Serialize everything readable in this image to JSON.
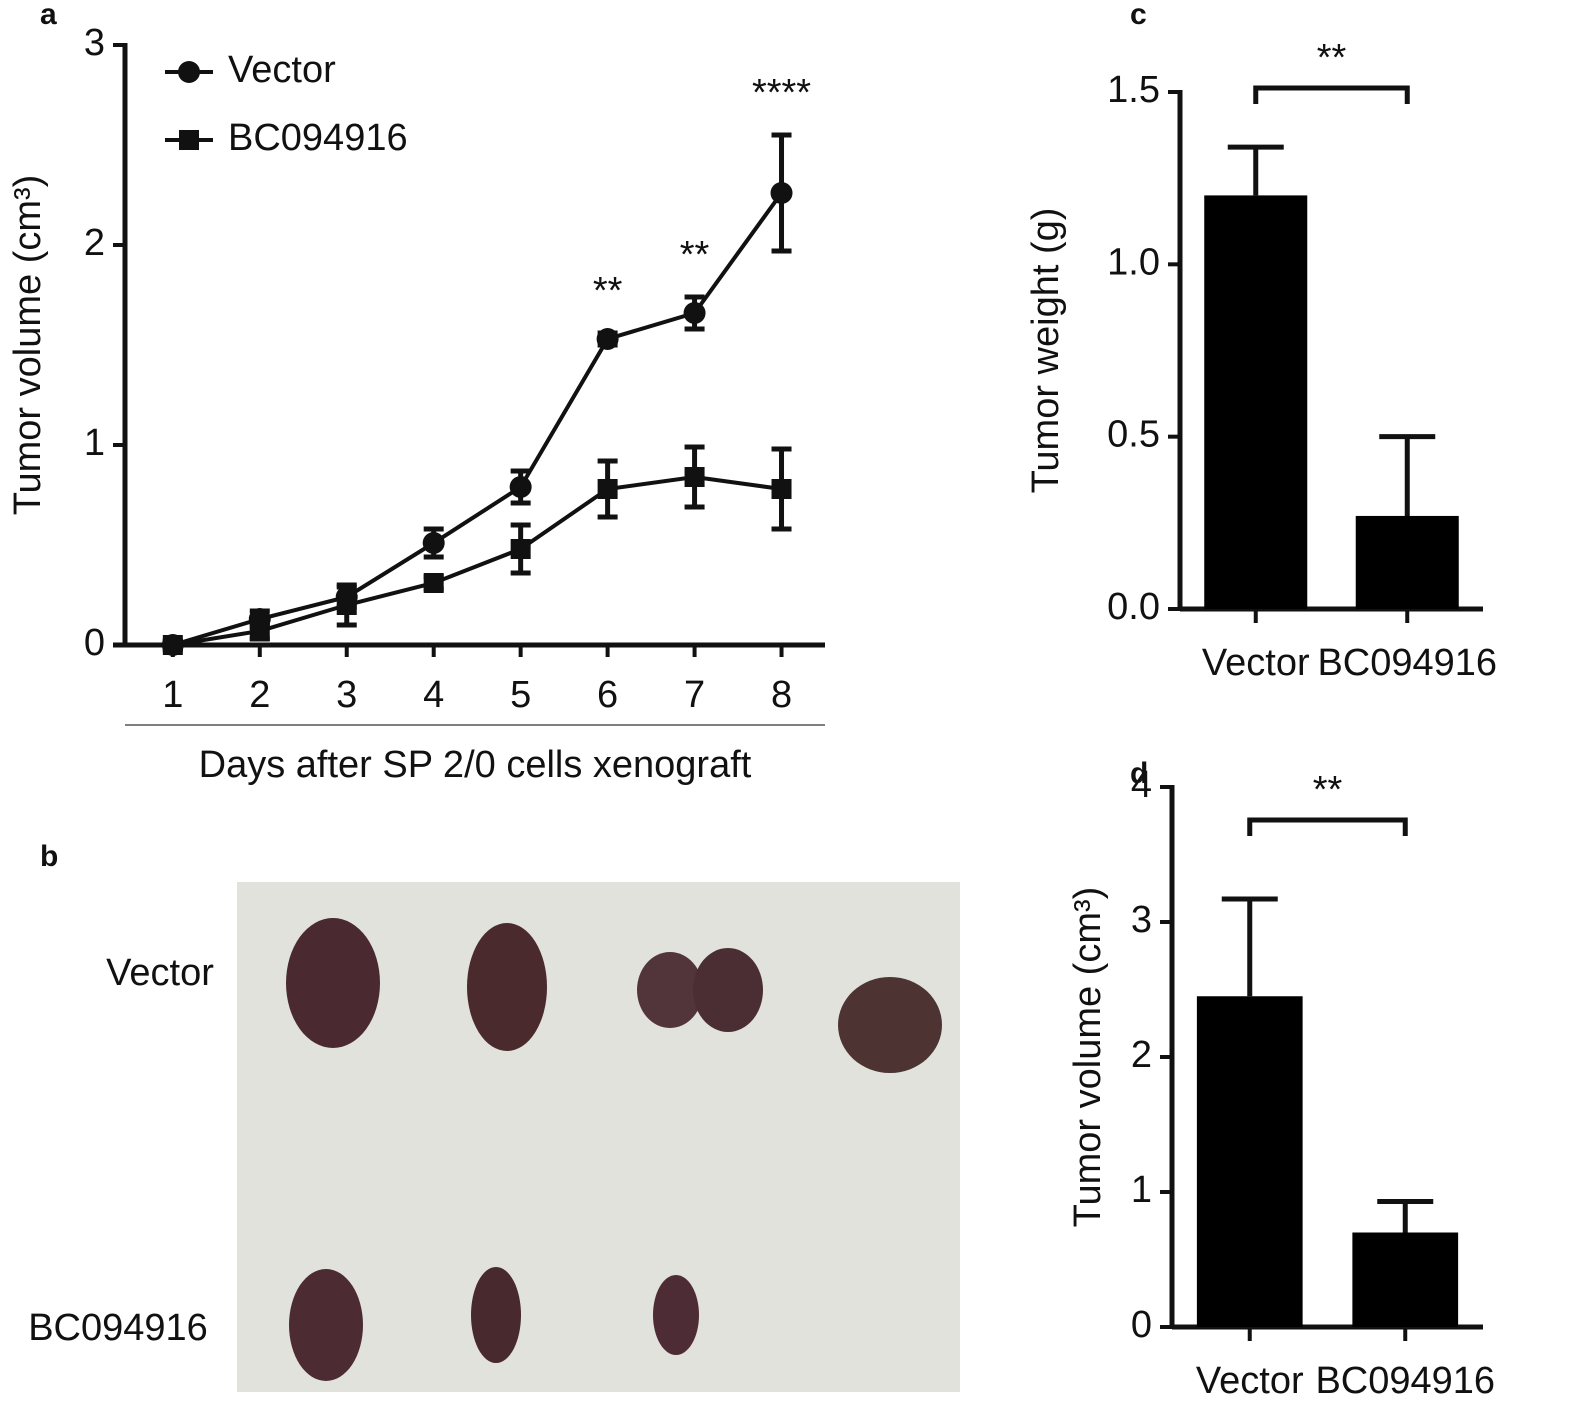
{
  "panel_labels": [
    "a",
    "b",
    "c",
    "d"
  ],
  "photo": {
    "row_labels": [
      "Vector",
      "BC094916"
    ]
  },
  "chart_data": [
    {
      "type": "line",
      "ylabel": "Tumor volume (cm³)",
      "xlabel": "Days after SP 2/0 cells xenograft",
      "x": [
        1,
        2,
        3,
        4,
        5,
        6,
        7,
        8
      ],
      "xlim": [
        0.45,
        8.5
      ],
      "xticks": [
        1,
        2,
        3,
        4,
        5,
        6,
        7,
        8
      ],
      "ylim": [
        0,
        3
      ],
      "yticks": [
        0,
        1,
        2,
        3
      ],
      "series": [
        {
          "name": "Vector",
          "color": "#111111",
          "marker": "circle",
          "values": [
            0,
            0.13,
            0.24,
            0.51,
            0.79,
            1.53,
            1.66,
            2.26
          ],
          "errors": [
            0.02,
            0.04,
            0.05,
            0.07,
            0.08,
            0.03,
            0.08,
            0.29
          ]
        },
        {
          "name": "BC094916",
          "color": "#111111",
          "marker": "square",
          "values": [
            0,
            0.07,
            0.2,
            0.31,
            0.48,
            0.78,
            0.84,
            0.78
          ],
          "errors": [
            0.02,
            0.04,
            0.1,
            0.03,
            0.12,
            0.14,
            0.15,
            0.2
          ]
        }
      ],
      "annotations": [
        {
          "x": 6,
          "label": "**"
        },
        {
          "x": 7,
          "label": "**"
        },
        {
          "x": 8,
          "label": "****"
        }
      ],
      "legend": "upper-left"
    },
    {
      "type": "bar",
      "ylabel": "Tumor weight (g)",
      "categories": [
        "Vector",
        "BC094916"
      ],
      "values": [
        1.2,
        0.27
      ],
      "errors": [
        0.14,
        0.23
      ],
      "color": "#000000",
      "ylim": [
        0,
        1.5
      ],
      "yticks": [
        {
          "value": 0,
          "label": "0.0"
        },
        {
          "value": 0.5,
          "label": "0.5"
        },
        {
          "value": 1,
          "label": "1.0"
        },
        {
          "value": 1.5,
          "label": "1.5"
        }
      ],
      "significance": "**"
    },
    {
      "type": "bar",
      "ylabel": "Tumor volume (cm³)",
      "categories": [
        "Vector",
        "BC094916"
      ],
      "values": [
        2.45,
        0.7
      ],
      "errors": [
        0.72,
        0.23
      ],
      "color": "#000000",
      "ylim": [
        0,
        4
      ],
      "yticks": [
        0,
        1,
        2,
        3,
        4
      ],
      "significance": "**"
    }
  ]
}
